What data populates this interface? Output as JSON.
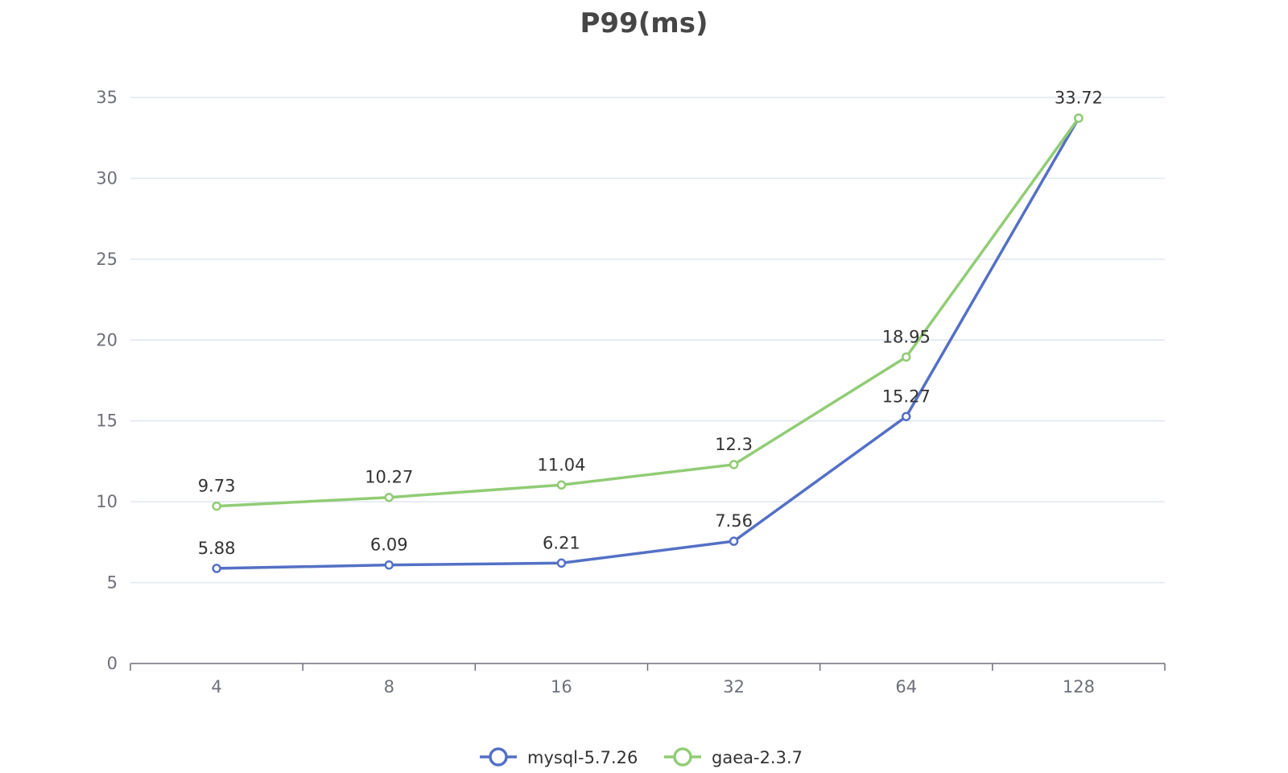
{
  "chart_data": {
    "type": "line",
    "title": "P99(ms)",
    "categories": [
      "4",
      "8",
      "16",
      "32",
      "64",
      "128"
    ],
    "ylim": [
      0,
      35
    ],
    "yticks": [
      0,
      5,
      10,
      15,
      20,
      25,
      30,
      35
    ],
    "grid": true,
    "legend_position": "bottom-center",
    "series": [
      {
        "name": "mysql-5.7.26",
        "color": "#5470C6",
        "values": [
          5.88,
          6.09,
          6.21,
          7.56,
          15.27,
          33.72
        ],
        "labels": [
          "5.88",
          "6.09",
          "6.21",
          "7.56",
          "15.27",
          ""
        ]
      },
      {
        "name": "gaea-2.3.7",
        "color": "#91CC75",
        "values": [
          9.73,
          10.27,
          11.04,
          12.3,
          18.95,
          33.72
        ],
        "labels": [
          "9.73",
          "10.27",
          "11.04",
          "12.3",
          "18.95",
          "33.72"
        ]
      }
    ]
  }
}
